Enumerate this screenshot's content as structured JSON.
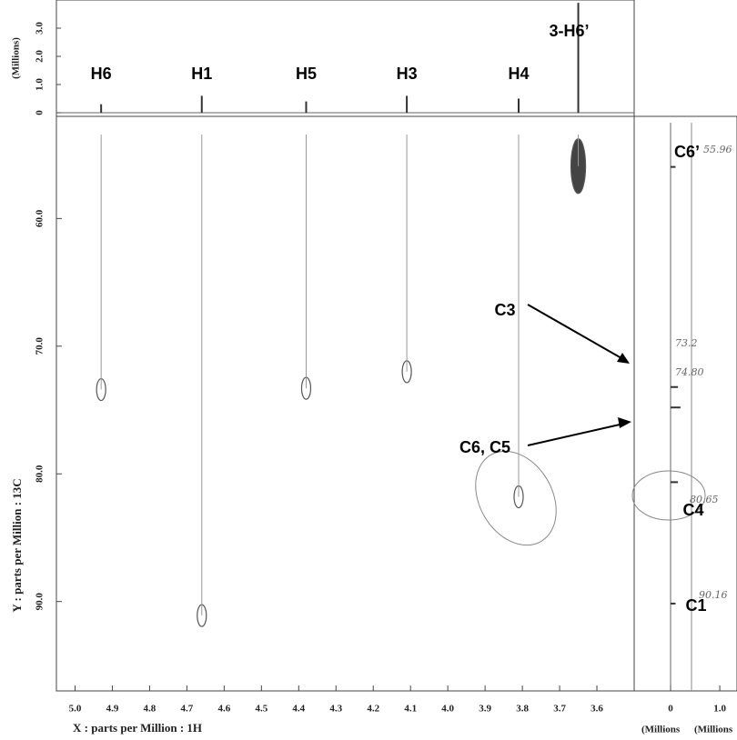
{
  "chart_data": [
    {
      "type": "scatter",
      "xlabel": "X : parts per Million : 1H",
      "ylabel": "Y : parts per Million : 13C",
      "x": [
        4.93,
        4.66,
        4.38,
        4.11,
        3.81,
        3.65
      ],
      "values": [
        73.4,
        91.1,
        73.3,
        72.0,
        81.8,
        55.9
      ],
      "color": "#555555",
      "xlim": [
        5.05,
        3.5
      ],
      "ylim": [
        52,
        97
      ],
      "xticks": [
        {
          "value": 5,
          "label": "5.0"
        },
        4.9,
        4.8,
        4.7,
        4.6,
        4.5,
        4.4,
        4.3,
        4.2,
        4.1,
        {
          "value": 4,
          "label": "4.0"
        },
        3.9,
        3.8,
        3.7,
        3.6
      ],
      "yticks": [
        {
          "value": 60,
          "label": "60.0"
        },
        {
          "value": 70,
          "label": "70.0"
        },
        {
          "value": 80,
          "label": "80.0"
        },
        {
          "value": 90,
          "label": "90.0"
        }
      ]
    },
    {
      "type": "stick",
      "ylabel": "(Millions)",
      "categories": [
        "H6",
        "H1",
        "H5",
        "H3",
        "H4",
        "3-H6’"
      ],
      "x": [
        4.93,
        4.66,
        4.38,
        4.11,
        3.81,
        3.65
      ],
      "values": [
        0.3,
        0.6,
        0.4,
        0.6,
        0.5,
        3.9
      ],
      "xlim": [
        5.05,
        3.5
      ],
      "ylim": [
        -0.13,
        4.0
      ],
      "yticks": [
        0,
        {
          "value": 1,
          "label": "1.0"
        },
        {
          "value": 2,
          "label": "2.0"
        },
        {
          "value": 3,
          "label": "3.0"
        }
      ]
    },
    {
      "type": "hstick",
      "xlabel": "(Millions",
      "xlabel2": "(Millions",
      "categories": [
        "C6’",
        "C3",
        "C6, C5",
        "C4",
        "C1"
      ],
      "y": [
        55.96,
        73.2,
        74.8,
        80.65,
        90.16
      ],
      "y_labels": [
        "55.96",
        "73.2",
        "74.80",
        "80.65",
        "90.16"
      ],
      "values": [
        0.1,
        0.15,
        0.2,
        0.15,
        0.1
      ],
      "xlim": [
        -0.74,
        1.35
      ],
      "ylim": [
        52,
        97
      ],
      "xticks": [
        0,
        {
          "value": 1,
          "label": "1.0"
        }
      ]
    }
  ]
}
